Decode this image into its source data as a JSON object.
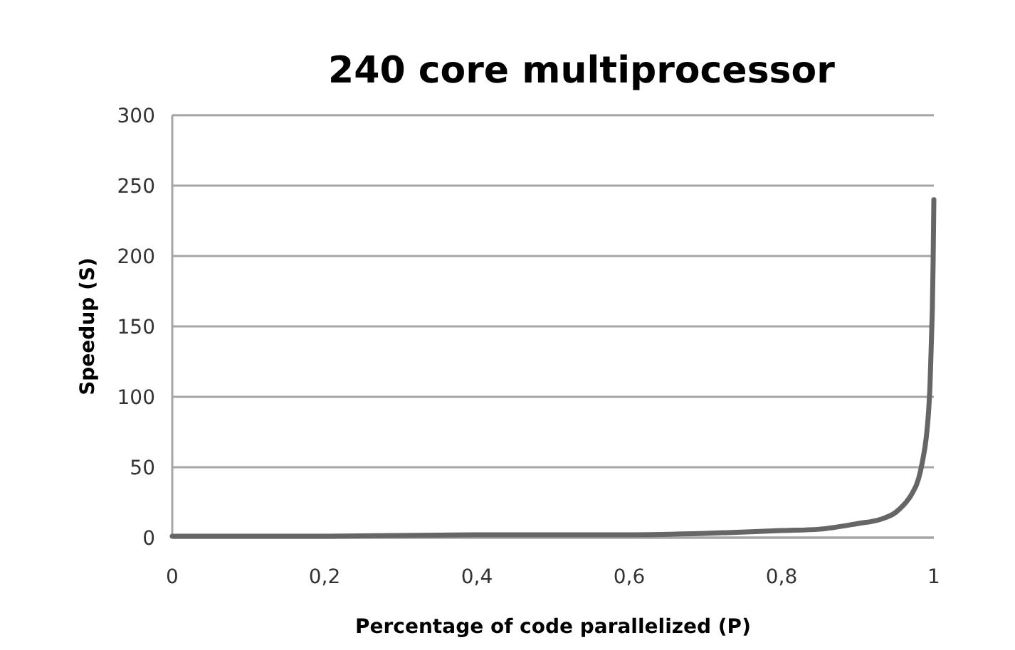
{
  "chart_data": {
    "type": "line",
    "title": "240 core multiprocessor",
    "xlabel": "Percentage of code parallelized  (P)",
    "ylabel": "Speedup (S)",
    "xlim": [
      0,
      1
    ],
    "xticks": [
      {
        "value": 0,
        "label": "0"
      },
      {
        "value": 0.2,
        "label": "0,2"
      },
      {
        "value": 0.4,
        "label": "0,4"
      },
      {
        "value": 0.6,
        "label": "0,6"
      },
      {
        "value": 0.8,
        "label": "0,8"
      },
      {
        "value": 1,
        "label": "1"
      }
    ],
    "ylim": [
      0,
      300
    ],
    "yticks": [
      0,
      50,
      100,
      150,
      200,
      250,
      300
    ],
    "grid": "y",
    "marker": "none",
    "line_style": "solid",
    "x": [
      0,
      0.2,
      0.4,
      0.6,
      0.7,
      0.8,
      0.85,
      0.9,
      0.93,
      0.95,
      0.96,
      0.97,
      0.98,
      0.985,
      0.99,
      0.993,
      0.995,
      0.997,
      0.998,
      0.999,
      1
    ],
    "series": [
      {
        "color": "#666666",
        "values": [
          1,
          1,
          2,
          2,
          3,
          5,
          6,
          10,
          13,
          18,
          23,
          30,
          42,
          54,
          71,
          89,
          109,
          144,
          162,
          194,
          240
        ]
      }
    ]
  }
}
